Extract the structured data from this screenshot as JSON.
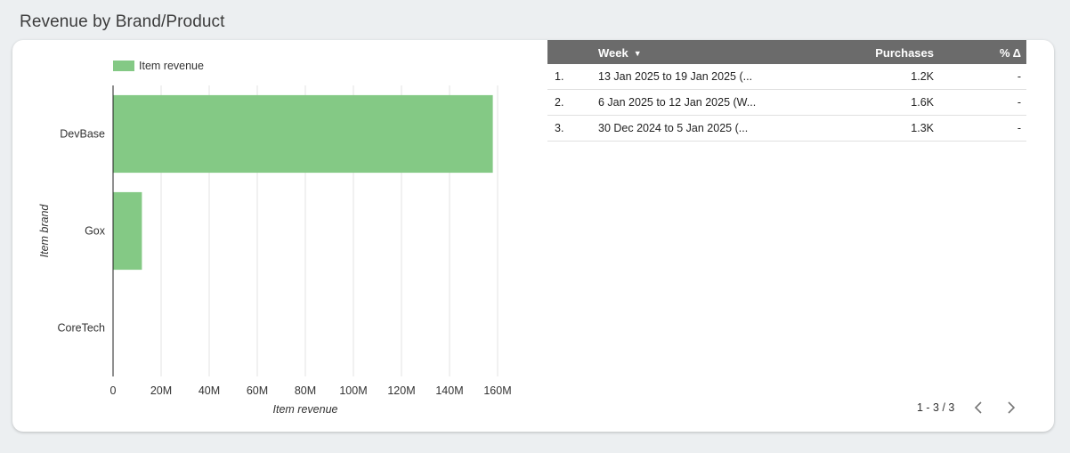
{
  "section_title": "Revenue by Brand/Product",
  "chart_data": {
    "type": "bar",
    "orientation": "horizontal",
    "categories": [
      "DevBase",
      "Gox",
      "CoreTech"
    ],
    "series": [
      {
        "name": "Item revenue",
        "values": [
          158000000,
          12000000,
          0
        ]
      }
    ],
    "xlabel": "Item revenue",
    "ylabel": "Item brand",
    "xlim": [
      0,
      160000000
    ],
    "x_ticks": [
      0,
      20000000,
      40000000,
      60000000,
      80000000,
      100000000,
      120000000,
      140000000,
      160000000
    ],
    "x_tick_labels": [
      "0",
      "20M",
      "40M",
      "60M",
      "80M",
      "100M",
      "120M",
      "140M",
      "160M"
    ],
    "grid": true,
    "legend": "top-left",
    "bar_color": "#84c985"
  },
  "table": {
    "headers": {
      "week": "Week",
      "purchases": "Purchases",
      "delta": "% Δ"
    },
    "sort_icon": "caret-down-icon",
    "rows": [
      {
        "idx": "1.",
        "week": "13 Jan 2025 to 19 Jan 2025 (...",
        "purchases": "1.2K",
        "delta": "-"
      },
      {
        "idx": "2.",
        "week": "6 Jan 2025 to 12 Jan 2025 (W...",
        "purchases": "1.6K",
        "delta": "-"
      },
      {
        "idx": "3.",
        "week": "30 Dec 2024 to 5 Jan 2025 (...",
        "purchases": "1.3K",
        "delta": "-"
      }
    ]
  },
  "pagination": {
    "label": "1 - 3 / 3",
    "prev_icon": "chevron-left-icon",
    "next_icon": "chevron-right-icon"
  }
}
